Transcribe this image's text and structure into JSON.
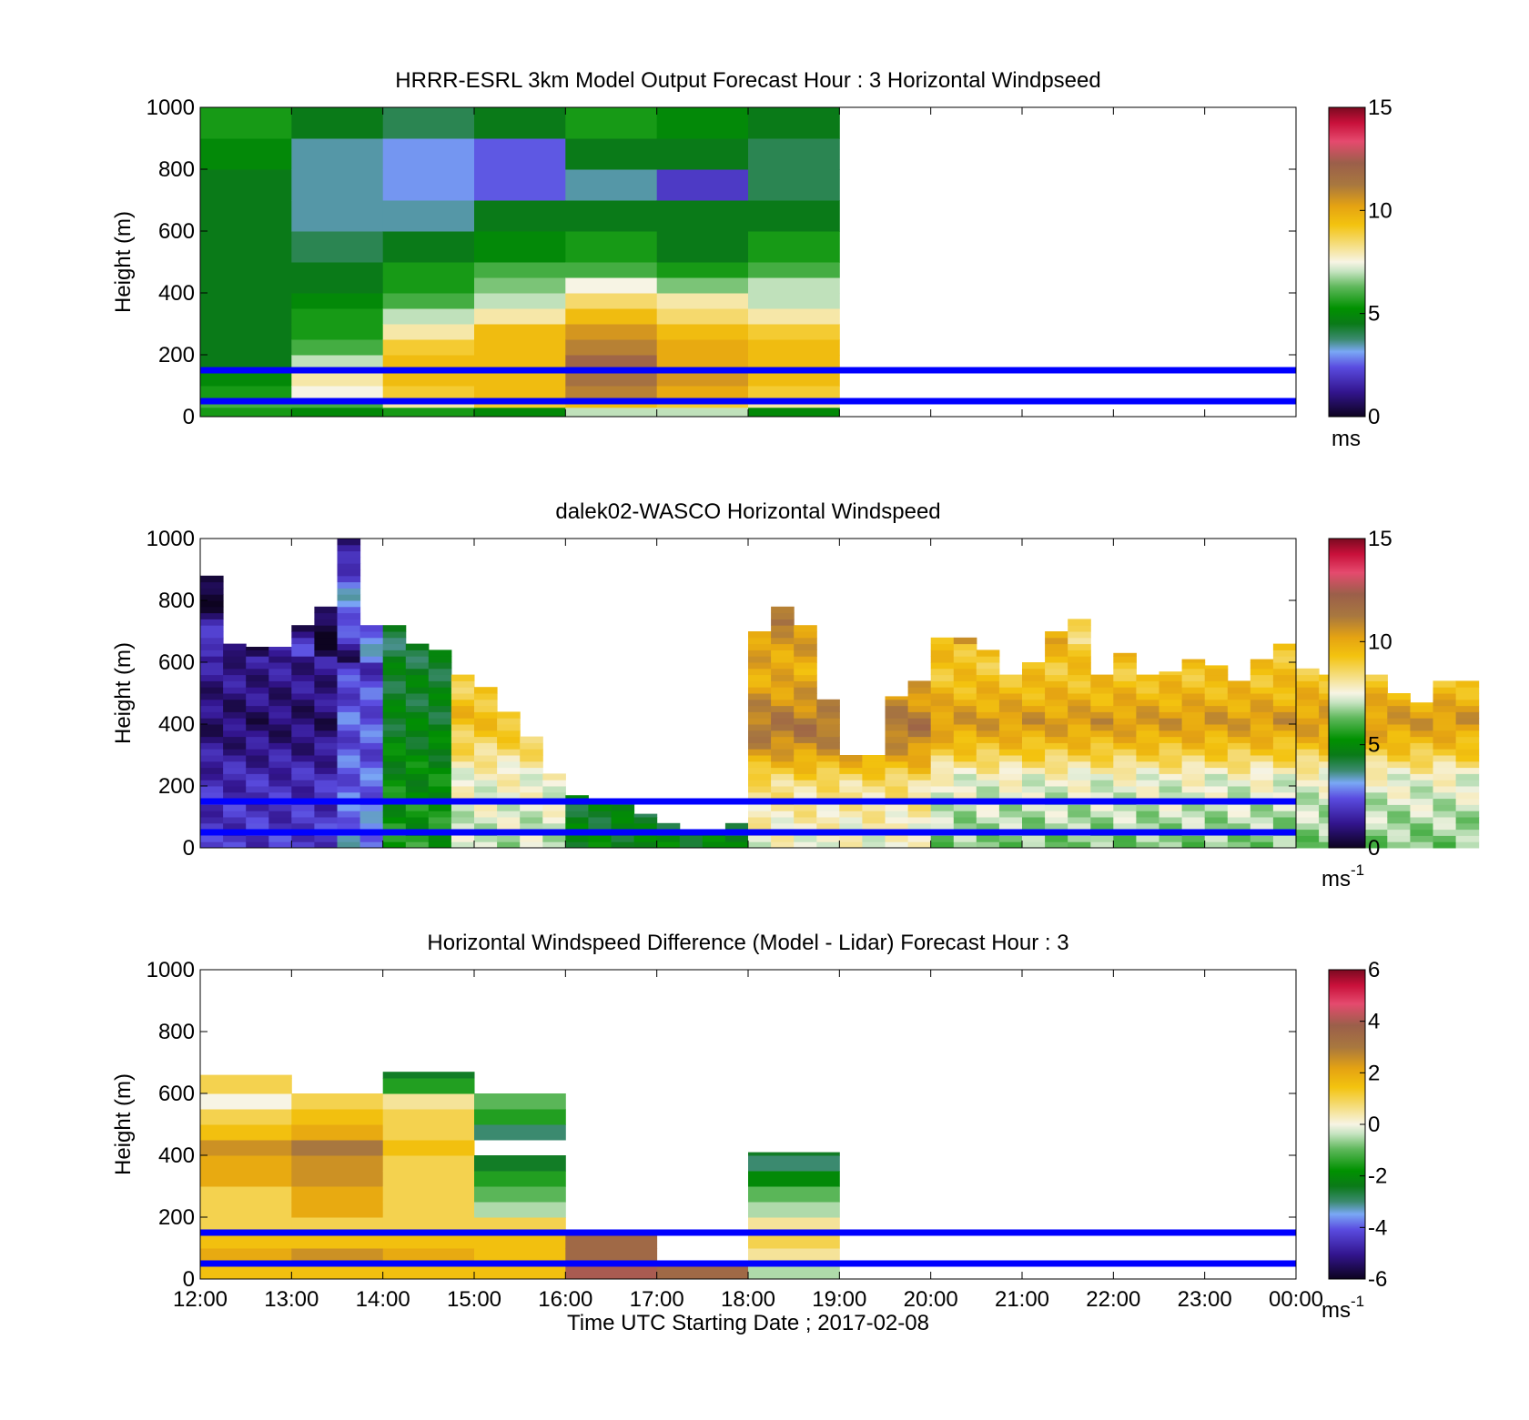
{
  "figure": {
    "xlabel": "Time UTC  Starting Date ; 2017-02-08"
  },
  "reference_lines": {
    "heights_m": [
      150,
      50
    ],
    "color": "#0000ff"
  },
  "chart_data": [
    {
      "type": "heatmap",
      "title": "HRRR-ESRL 3km Model Output   Forecast Hour : 3 Horizontal Windpseed",
      "xlabel": "",
      "ylabel": "Height (m)",
      "xlim_hours": [
        12,
        24
      ],
      "ylim": [
        0,
        1000
      ],
      "yticks": [
        "0",
        "200",
        "400",
        "600",
        "800",
        "1000"
      ],
      "show_xticklabels": false,
      "colorbar": {
        "label": "ms",
        "sup": "",
        "range": [
          0,
          15
        ],
        "ticks": [
          "0",
          "5",
          "10",
          "15"
        ]
      },
      "columns_hours": [
        [
          12,
          13
        ],
        [
          13,
          14
        ],
        [
          14,
          15
        ],
        [
          15,
          16
        ],
        [
          16,
          17
        ],
        [
          17,
          18
        ],
        [
          18,
          19
        ]
      ],
      "level_edges_m": [
        0,
        30,
        60,
        100,
        150,
        200,
        250,
        300,
        350,
        400,
        450,
        500,
        600,
        700,
        800,
        900,
        1000
      ],
      "values_ms": [
        [
          5.5,
          5.0,
          5.5,
          5.0,
          7.0,
          7.0,
          5.0
        ],
        [
          6.0,
          6.0,
          8.0,
          9.0,
          9.5,
          9.0,
          8.0
        ],
        [
          5.5,
          7.5,
          9.0,
          9.5,
          11.0,
          10.0,
          9.0
        ],
        [
          5.0,
          8.0,
          9.5,
          9.5,
          11.5,
          10.5,
          9.5
        ],
        [
          4.5,
          7.0,
          9.5,
          9.5,
          12.0,
          10.0,
          9.5
        ],
        [
          4.5,
          6.0,
          9.0,
          9.5,
          11.0,
          10.0,
          9.5
        ],
        [
          4.5,
          5.5,
          8.0,
          9.5,
          10.5,
          9.5,
          9.0
        ],
        [
          4.5,
          5.5,
          7.0,
          8.0,
          9.5,
          8.5,
          8.0
        ],
        [
          4.5,
          5.0,
          6.0,
          7.0,
          8.5,
          8.0,
          7.0
        ],
        [
          4.5,
          4.5,
          5.5,
          6.5,
          7.5,
          6.5,
          7.0
        ],
        [
          4.5,
          4.5,
          5.5,
          6.0,
          6.0,
          5.5,
          6.0
        ],
        [
          4.5,
          4.0,
          4.5,
          5.0,
          5.5,
          4.5,
          5.5
        ],
        [
          4.5,
          3.5,
          3.5,
          4.5,
          4.5,
          4.5,
          4.5
        ],
        [
          4.5,
          3.5,
          3.0,
          2.5,
          3.5,
          2.0,
          4.0
        ],
        [
          5.0,
          3.5,
          3.0,
          2.5,
          4.5,
          4.5,
          4.0
        ],
        [
          5.5,
          4.5,
          4.0,
          4.5,
          5.5,
          5.0,
          4.5
        ]
      ]
    },
    {
      "type": "heatmap",
      "title": "dalek02-WASCO  Horizontal Windspeed",
      "xlabel": "",
      "ylabel": "Height (m)",
      "xlim_hours": [
        12,
        24
      ],
      "ylim": [
        0,
        1000
      ],
      "yticks": [
        "0",
        "200",
        "400",
        "600",
        "800",
        "1000"
      ],
      "show_xticklabels": false,
      "colorbar": {
        "label": "ms",
        "sup": "-1",
        "range": [
          0,
          15
        ],
        "ticks": [
          "0",
          "5",
          "10",
          "15"
        ]
      },
      "profile_step_hours": 0.25,
      "level_step_m": 20,
      "profile_tops_m": [
        880,
        660,
        650,
        650,
        720,
        780,
        1000,
        720,
        720,
        660,
        640,
        560,
        520,
        440,
        360,
        240,
        170,
        140,
        160,
        110,
        80,
        60,
        60,
        80,
        700,
        780,
        720,
        480,
        300,
        300,
        490,
        540,
        680,
        680,
        640,
        560,
        600,
        700,
        740,
        560,
        630,
        560,
        570,
        610,
        590,
        540,
        610,
        660,
        580,
        560,
        540,
        560,
        500,
        470,
        540,
        540
      ],
      "profiles": [
        {
          "start": 12.0,
          "end": 13.5,
          "bottom": 2.0,
          "top": 1.2,
          "cut": 600,
          "dip": 400,
          "dip_val": 0.8
        },
        {
          "start": 13.5,
          "end": 14.0,
          "bottom": 3.0,
          "top": 1.8,
          "cut": 580,
          "dip": 420,
          "dip_val": 2.5
        },
        {
          "start": 14.0,
          "end": 14.75,
          "bottom": 5.5,
          "top": 4.0,
          "cut": 700,
          "dip": 500,
          "dip_val": 4.5
        },
        {
          "start": 14.75,
          "end": 16.0,
          "bottom": 7.0,
          "top": 8.8,
          "cut": 620,
          "dip": 420,
          "dip_val": 9.5
        },
        {
          "start": 16.0,
          "end": 18.0,
          "bottom": 5.0,
          "top": 5.5,
          "cut": 200,
          "dip": 100,
          "dip_val": 4.5
        },
        {
          "start": 18.0,
          "end": 20.0,
          "bottom": 7.5,
          "top": 10.5,
          "cut": 700,
          "dip": 380,
          "dip_val": 11.5
        },
        {
          "start": 20.0,
          "end": 24.0,
          "bottom": 6.5,
          "top": 9.5,
          "cut": 650,
          "dip": 400,
          "dip_val": 10.5
        }
      ]
    },
    {
      "type": "heatmap",
      "title": "Horizontal Windspeed Difference (Model - Lidar) Forecast Hour : 3",
      "xlabel": "Time UTC  Starting Date ; 2017-02-08",
      "ylabel": "Height (m)",
      "xlim_hours": [
        12,
        24
      ],
      "xticks": [
        "12:00",
        "13:00",
        "14:00",
        "15:00",
        "16:00",
        "17:00",
        "18:00",
        "19:00",
        "20:00",
        "21:00",
        "22:00",
        "23:00",
        "00:00"
      ],
      "ylim": [
        0,
        1000
      ],
      "yticks": [
        "0",
        "200",
        "400",
        "600",
        "800",
        "1000"
      ],
      "show_xticklabels": true,
      "colorbar": {
        "label": "ms",
        "sup": "-1",
        "range": [
          -6,
          6
        ],
        "ticks": [
          "-6",
          "-4",
          "-2",
          "0",
          "2",
          "4",
          "6"
        ]
      },
      "columns_hours": [
        [
          12,
          13
        ],
        [
          13,
          14
        ],
        [
          14,
          15
        ],
        [
          15,
          16
        ],
        [
          16,
          17
        ],
        [
          17,
          18
        ],
        [
          18,
          19
        ]
      ],
      "column_tops_m": [
        660,
        600,
        670,
        600,
        160,
        60,
        410
      ],
      "level_edges_m": [
        0,
        50,
        100,
        150,
        200,
        250,
        300,
        350,
        400,
        450,
        500,
        550,
        600,
        650,
        700
      ],
      "values_ms": [
        [
          1.5,
          2.0,
          1.5,
          1.0,
          1.0,
          1.0,
          2.0,
          2.0,
          2.5,
          1.5,
          1.0,
          0.0,
          1.0,
          1.0
        ],
        [
          1.5,
          2.5,
          1.5,
          1.0,
          2.0,
          2.0,
          2.5,
          2.5,
          3.0,
          2.0,
          1.5,
          1.0,
          0.0,
          null
        ],
        [
          1.5,
          2.0,
          1.5,
          1.0,
          1.0,
          1.0,
          1.0,
          1.0,
          1.5,
          1.0,
          1.0,
          0.5,
          -1.5,
          -2.5
        ],
        [
          1.5,
          1.5,
          1.5,
          1.0,
          -0.5,
          -1.0,
          -1.5,
          -2.5,
          null,
          -3.0,
          -1.5,
          -1.0,
          null,
          null
        ],
        [
          4.0,
          3.5,
          3.5,
          3.5,
          null,
          null,
          null,
          null,
          null,
          null,
          null,
          null,
          null,
          null
        ],
        [
          3.5,
          3.5,
          null,
          null,
          null,
          null,
          null,
          null,
          null,
          null,
          null,
          null,
          null,
          null
        ],
        [
          -0.5,
          0.5,
          1.0,
          0.5,
          -0.5,
          -1.0,
          -2.0,
          -3.0,
          -2.5,
          null,
          null,
          null,
          null,
          null
        ]
      ]
    }
  ]
}
